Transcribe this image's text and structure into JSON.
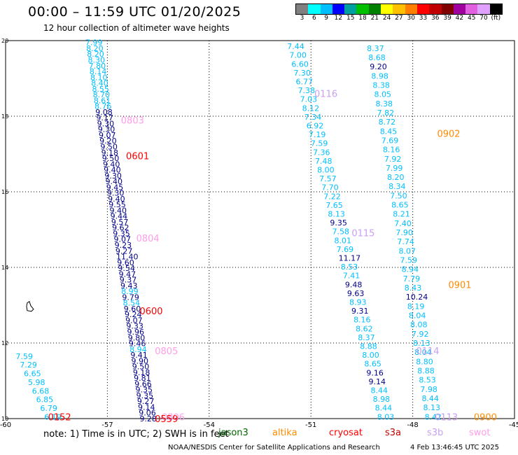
{
  "header": {
    "title": "00:00 – 11:59 UTC 01/20/2025",
    "subtitle": "12 hour collection of altimeter wave heights"
  },
  "color_scale": {
    "labels": [
      "3",
      "6",
      "9",
      "12",
      "15",
      "18",
      "21",
      "24",
      "27",
      "30",
      "33",
      "36",
      "39",
      "42",
      "45",
      "70",
      "(ft)"
    ],
    "colors": [
      "#808080",
      "#00ffff",
      "#00bfff",
      "#0000ff",
      "#00a0a0",
      "#00c000",
      "#008000",
      "#ffff00",
      "#ffc000",
      "#ff8000",
      "#ff0000",
      "#c00000",
      "#800000",
      "#a000a0",
      "#e060e0",
      "#e0a0ff",
      "#000000"
    ]
  },
  "axes": {
    "x_ticks": [
      "-60",
      "-57",
      "-54",
      "-51",
      "-48",
      "-45"
    ],
    "y_ticks": [
      "20",
      "18",
      "16",
      "14",
      "12",
      "10"
    ],
    "y_values": [
      20,
      18,
      16,
      14,
      12,
      10
    ],
    "x_values": [
      -60,
      -57,
      -54,
      -51,
      -48,
      -45
    ]
  },
  "satellite_colors": {
    "jason3": "#006400",
    "altika": "#ff8c00",
    "cryosat": "#ff0000",
    "s3a": "#c00000",
    "s3b": "#c8a0f0",
    "swot": "#ff9ee8",
    "cyan": "#00bfff",
    "blue": "#00008b"
  },
  "track_labels": [
    {
      "text": "0803",
      "sat": "swot",
      "lon": -56.6,
      "lat": 17.9
    },
    {
      "text": "0601",
      "sat": "cryosat",
      "lon": -56.45,
      "lat": 16.95
    },
    {
      "text": "0804",
      "sat": "swot",
      "lon": -56.15,
      "lat": 14.78
    },
    {
      "text": "0600",
      "sat": "cryosat",
      "lon": -56.05,
      "lat": 12.85
    },
    {
      "text": "0805",
      "sat": "swot",
      "lon": -55.6,
      "lat": 11.8
    },
    {
      "text": "0806",
      "sat": "swot",
      "lon": -55.4,
      "lat": 10.05
    },
    {
      "text": "0559",
      "sat": "cryosat",
      "lon": -55.6,
      "lat": 10.0
    },
    {
      "text": "0152",
      "sat": "cryosat",
      "lon": -58.75,
      "lat": 10.05
    },
    {
      "text": "0116",
      "sat": "s3b",
      "lon": -50.9,
      "lat": 18.6
    },
    {
      "text": "0115",
      "sat": "s3b",
      "lon": -49.8,
      "lat": 14.92
    },
    {
      "text": "0114",
      "sat": "s3b",
      "lon": -47.9,
      "lat": 11.8
    },
    {
      "text": "0113",
      "sat": "s3b",
      "lon": -47.35,
      "lat": 10.05
    },
    {
      "text": "0902",
      "sat": "altika",
      "lon": -47.28,
      "lat": 17.55
    },
    {
      "text": "0901",
      "sat": "altika",
      "lon": -46.95,
      "lat": 13.55
    },
    {
      "text": "0900",
      "sat": "altika",
      "lon": -46.2,
      "lat": 10.05
    }
  ],
  "left_track_values": [
    "7.59",
    "7.29",
    "6.65",
    "5.98",
    "6.68",
    "6.85",
    "6.79",
    "6.19"
  ],
  "left_track_lon": -59.7,
  "left_track_lat_top": 11.65,
  "left_track_lat_bottom": 10.05,
  "track_s3b_values": [
    "7.44",
    "7.00",
    "6.60",
    "7.30",
    "6.77",
    "7.38",
    "7.03",
    "8.12",
    "7.34",
    "6.92",
    "7.19",
    "7.59",
    "7.36",
    "7.48",
    "8.00",
    "7.57",
    "7.70",
    "7.22",
    "7.65",
    "8.13",
    "9.35",
    "7.58",
    "8.01",
    "7.69",
    "11.17",
    "8.53",
    "7.41",
    "9.48",
    "9.63",
    "8.93",
    "9.31",
    "8.16",
    "8.62",
    "8.37",
    "8.88",
    "8.00",
    "8.65",
    "9.16",
    "9.14",
    "8.44",
    "8.98",
    "8.44",
    "8.03"
  ],
  "track_s3b_blue": [
    "9.35",
    "11.17",
    "9.48",
    "9.63",
    "9.31",
    "9.16",
    "9.14"
  ],
  "track_s3b_lon_top": -51.7,
  "track_s3b_lon_bottom": -49.05,
  "track_s3b_lat_top": 19.85,
  "track_s3b_lat_bottom": 10.05,
  "track_altika_values": [
    "8.37",
    "8.68",
    "9.20",
    "8.98",
    "8.38",
    "8.05",
    "8.38",
    "7.82",
    "8.72",
    "8.45",
    "7.69",
    "8.16",
    "7.92",
    "7.99",
    "8.20",
    "8.34",
    "7.50",
    "8.65",
    "8.21",
    "7.40",
    "7.90",
    "7.74",
    "8.07",
    "7.59",
    "8.94",
    "7.79",
    "8.43",
    "10.24",
    "8.19",
    "8.04",
    "8.08",
    "7.92",
    "8.13",
    "8.04",
    "8.80",
    "8.88",
    "8.53",
    "7.98",
    "8.44",
    "8.13",
    "8.42"
  ],
  "track_altika_blue": [
    "9.20",
    "10.24"
  ],
  "track_altika_lon_top": -49.35,
  "track_altika_lon_bottom": -47.65,
  "track_altika_lat_top": 19.8,
  "track_altika_lat_bottom": 10.05,
  "dense_track_values": [
    "7.99",
    "8.20",
    "8.20",
    "8.30",
    "7.80",
    "8.14",
    "8.10",
    "8.40",
    "8.55",
    "8.70",
    "8.61",
    "8.76",
    "9.08",
    "9.17",
    "9.30",
    "9.30",
    "9.07",
    "9.20",
    "9.50",
    "9.18",
    "9.50",
    "9.40",
    "9.40",
    "9.30",
    "9.40",
    "9.45",
    "9.30",
    "9.40",
    "9.55",
    "9.40",
    "9.44",
    "9.57",
    "9.62",
    "9.35",
    "9.07",
    "9.23",
    "9.27",
    "11.40",
    "9.60",
    "9.54",
    "9.47",
    "9.37",
    "9.43",
    "8.99",
    "9.79",
    "8.54",
    "9.60",
    "9.24",
    "9.07",
    "9.33",
    "9.96",
    "9.80",
    "9.46",
    "8.94",
    "9.41",
    "9.90",
    "9.50",
    "9.18",
    "9.81",
    "9.66",
    "9.35",
    "9.35",
    "9.27",
    "9.14",
    "9.06",
    "9.28"
  ],
  "dense_lon_top": -57.65,
  "dense_lon_bottom": -56.05,
  "dense_lat_top": 19.95,
  "dense_lat_bottom": 10.0,
  "island_marker": {
    "lon": -59.3,
    "lat": 12.95
  },
  "note_text": "note: 1) Time is in UTC; 2) SWH is in feet",
  "legend": [
    {
      "label": "jason3",
      "sat": "jason3"
    },
    {
      "label": "altika",
      "sat": "altika"
    },
    {
      "label": "cryosat",
      "sat": "cryosat"
    },
    {
      "label": "s3a",
      "sat": "s3a"
    },
    {
      "label": "s3b",
      "sat": "s3b"
    },
    {
      "label": "swot",
      "sat": "swot"
    }
  ],
  "footer": {
    "center": "NOAA/NESDIS Center for Satellite Applications and Research",
    "right": "4 Feb 13:46:45 UTC 2025"
  }
}
